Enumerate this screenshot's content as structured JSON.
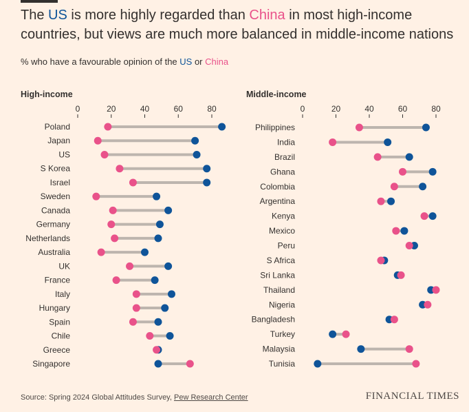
{
  "header": {
    "title_parts": [
      "The ",
      "US",
      " is more highly regarded than ",
      "China",
      " in most high-income countries, but views are much more balanced in middle-income nations"
    ],
    "subtitle_parts": [
      "% who have a favourable opinion of the ",
      "US",
      " or ",
      "China"
    ]
  },
  "colors": {
    "us": "#0f5499",
    "china": "#e9528a",
    "connector": "#bdb5ae",
    "background": "#fff1e5"
  },
  "footer": {
    "source_prefix": "Source: Spring 2024 Global Attitudes Survey, ",
    "source_link": "Pew Research Center",
    "brand": "FINANCIAL TIMES"
  },
  "chart_data": [
    {
      "type": "dumbbell",
      "title": "High-income",
      "xlim": [
        0,
        80
      ],
      "xticks": [
        0,
        20,
        40,
        60,
        80
      ],
      "series": [
        {
          "name": "US"
        },
        {
          "name": "China"
        }
      ],
      "categories": [
        "Poland",
        "Japan",
        "US",
        "S Korea",
        "Israel",
        "Sweden",
        "Canada",
        "Germany",
        "Netherlands",
        "Australia",
        "UK",
        "France",
        "Italy",
        "Hungary",
        "Spain",
        "Chile",
        "Greece",
        "Singapore"
      ],
      "us": [
        86,
        70,
        71,
        77,
        77,
        47,
        54,
        49,
        48,
        40,
        54,
        46,
        56,
        52,
        48,
        55,
        48,
        48
      ],
      "china": [
        18,
        12,
        16,
        25,
        33,
        11,
        21,
        20,
        22,
        14,
        31,
        23,
        35,
        35,
        33,
        43,
        47,
        67
      ]
    },
    {
      "type": "dumbbell",
      "title": "Middle-income",
      "xlim": [
        0,
        80
      ],
      "xticks": [
        0,
        20,
        40,
        60,
        80
      ],
      "series": [
        {
          "name": "US"
        },
        {
          "name": "China"
        }
      ],
      "categories": [
        "Philippines",
        "India",
        "Brazil",
        "Ghana",
        "Colombia",
        "Argentina",
        "Kenya",
        "Mexico",
        "Peru",
        "S Africa",
        "Sri Lanka",
        "Thailand",
        "Nigeria",
        "Bangladesh",
        "Turkey",
        "Malaysia",
        "Tunisia"
      ],
      "us": [
        74,
        51,
        64,
        78,
        72,
        53,
        78,
        61,
        67,
        49,
        57,
        77,
        72,
        52,
        18,
        35,
        9
      ],
      "china": [
        34,
        18,
        45,
        60,
        55,
        47,
        73,
        56,
        64,
        47,
        59,
        80,
        75,
        55,
        26,
        64,
        68
      ]
    }
  ]
}
